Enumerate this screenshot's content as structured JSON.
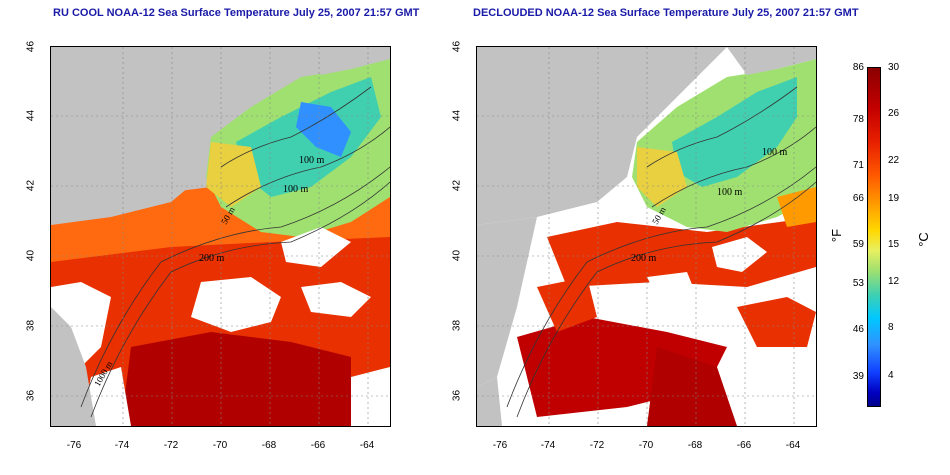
{
  "titles": {
    "left": "RU COOL NOAA-12 Sea Surface Temperature July 25, 2007 21:57 GMT",
    "right": "DECLOUDED NOAA-12 Sea Surface Temperature July 25, 2007 21:57 GMT"
  },
  "axes": {
    "lat_ticks": [
      "46",
      "44",
      "42",
      "40",
      "38",
      "36"
    ],
    "lon_ticks": [
      "-76",
      "-74",
      "-72",
      "-70",
      "-68",
      "-66",
      "-64"
    ]
  },
  "isobaths": {
    "label_100": "100 m",
    "label_50": "50 m",
    "label_200": "200 m",
    "label_1000": "1000 m"
  },
  "colorbar": {
    "fahrenheit": [
      "86",
      "78",
      "71",
      "66",
      "59",
      "53",
      "46",
      "39"
    ],
    "celsius": [
      "30",
      "26",
      "22",
      "19",
      "15",
      "12",
      "8",
      "4"
    ],
    "unit_f": "°F",
    "unit_c": "°C"
  },
  "colors": {
    "land": "#c2c2c2",
    "cloud": "#ffffff",
    "warm": "#e02800",
    "cool": "#40d0b0",
    "title": "#1a1aa8"
  }
}
